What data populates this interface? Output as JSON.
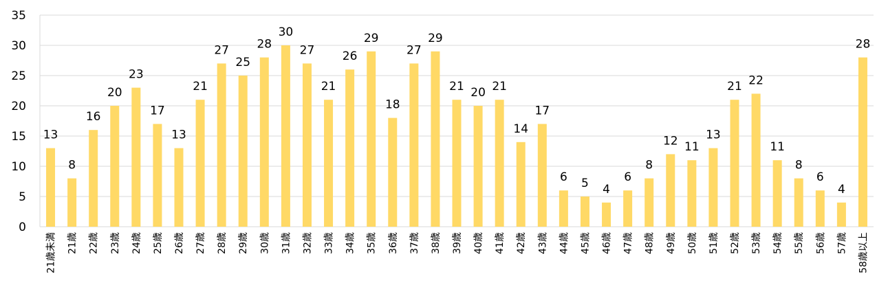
{
  "chart_data": {
    "type": "bar",
    "categories": [
      "21歳未満",
      "21歳",
      "22歳",
      "23歳",
      "24歳",
      "25歳",
      "26歳",
      "27歳",
      "28歳",
      "29歳",
      "30歳",
      "31歳",
      "32歳",
      "33歳",
      "34歳",
      "35歳",
      "36歳",
      "37歳",
      "38歳",
      "39歳",
      "40歳",
      "41歳",
      "42歳",
      "43歳",
      "44歳",
      "45歳",
      "46歳",
      "47歳",
      "48歳",
      "49歳",
      "50歳",
      "51歳",
      "52歳",
      "53歳",
      "54歳",
      "55歳",
      "56歳",
      "57歳",
      "58歳以上"
    ],
    "values": [
      13,
      8,
      16,
      20,
      23,
      17,
      13,
      21,
      27,
      25,
      28,
      30,
      27,
      21,
      26,
      29,
      18,
      27,
      29,
      21,
      20,
      21,
      14,
      17,
      6,
      5,
      4,
      6,
      8,
      12,
      11,
      13,
      21,
      22,
      11,
      8,
      6,
      4,
      28
    ],
    "color": "#ffd966",
    "ylim": [
      0,
      35
    ],
    "yticks": [
      0,
      5,
      10,
      15,
      20,
      25,
      30,
      35
    ],
    "grid": true
  }
}
